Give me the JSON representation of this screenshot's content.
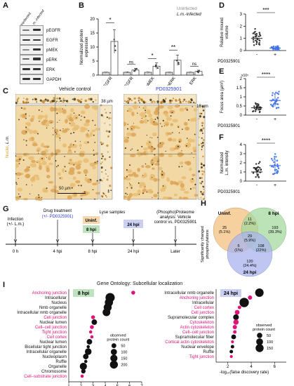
{
  "panels": {
    "A": {
      "label": "A",
      "columns": [
        "Uninfected",
        "L.m.-infected"
      ],
      "rows": [
        "pEGFR",
        "EGFR",
        "pMEK",
        "pERK",
        "ERK",
        "GAPDH"
      ]
    },
    "B": {
      "label": "B",
      "legend": [
        "Uninfected",
        "L.m.-infected"
      ],
      "ylabel": "Normalized protein\nexpression",
      "chart_data": {
        "type": "bar",
        "categories": [
          "pEGFR",
          "EGFR",
          "pMEK",
          "pERK",
          "ERK"
        ],
        "series": [
          {
            "name": "Uninfected",
            "values": [
              1,
              1,
              1,
              1,
              1
            ]
          },
          {
            "name": "L.m.-infected",
            "values": [
              12,
              1.8,
              3.2,
              5.3,
              1.3
            ]
          }
        ],
        "ylim": [
          0,
          20
        ],
        "yticks": [
          0,
          5,
          10,
          15,
          20
        ],
        "significance": [
          "*",
          "ns",
          "*",
          "**",
          "ns"
        ]
      }
    },
    "C": {
      "label": "C",
      "left_title": "Vehicle control",
      "right_title": "PD0325901",
      "left_depth": "38 µm",
      "right_depth": "18 µm",
      "scale": "50 µm",
      "side_label_1": "Nuclei, ",
      "side_label_2": "L.m."
    },
    "D": {
      "label": "D",
      "ylabel": "Relative mound\nvolume",
      "xlabel": "PD0325901",
      "groups": [
        "-",
        "+"
      ],
      "sig": "***",
      "chart_data": {
        "type": "scatter",
        "categories": [
          "-",
          "+"
        ],
        "means": [
          1.0,
          0.2
        ],
        "ylim": [
          0,
          3
        ],
        "yticks": [
          0,
          1,
          2,
          3
        ]
      }
    },
    "E": {
      "label": "E",
      "ylabel": "Focus area (µm²)",
      "xlabel": "PD0325901",
      "exponent": "x10⁵",
      "groups": [
        "-",
        "+"
      ],
      "sig": "****",
      "chart_data": {
        "type": "scatter",
        "categories": [
          "-",
          "+"
        ],
        "means": [
          0.4,
          0.8
        ],
        "ylim": [
          0,
          2.0
        ],
        "yticks": [
          0.0,
          0.5,
          1.0,
          1.5,
          2.0
        ]
      }
    },
    "F": {
      "label": "F",
      "ylabel": "Normalized\nL.m. intensity",
      "xlabel": "PD0325901",
      "groups": [
        "-",
        "+"
      ],
      "sig": "****",
      "chart_data": {
        "type": "scatter",
        "categories": [
          "-",
          "+"
        ],
        "means": [
          1.0,
          1.7
        ],
        "ylim": [
          0,
          4
        ],
        "yticks": [
          0,
          1,
          2,
          3,
          4
        ]
      }
    },
    "G": {
      "label": "G",
      "infection": "Infection\n(+/- L.m.)",
      "drug": "Drug treatment",
      "drug2": "(+/- PD0325901)",
      "lyse": "Lyse samples",
      "uninf": "Uninf.",
      "hpi8": "8 hpi",
      "hpi24": "24 hpi",
      "proteome1": "(Phospho)Proteome",
      "proteome2": "analysis: Vehicle",
      "proteome3": "control vs. PD0325901",
      "times": [
        "0 h",
        "4 hpi",
        "8 hpi",
        "24 hpi",
        "Later"
      ]
    },
    "H": {
      "label": "H",
      "ylabel": "Significantly changed\nphosphorylations",
      "circles": [
        "Uninf.",
        "8 hpi",
        "24 hpi"
      ],
      "regions": [
        {
          "v": "25",
          "p": "(5.1%)"
        },
        {
          "v": "11",
          "p": "(2.2%)"
        },
        {
          "v": "193",
          "p": "(39.3%)"
        },
        {
          "v": "29",
          "p": "(5.9%)"
        },
        {
          "v": "5",
          "p": "(1%)"
        },
        {
          "v": "108",
          "p": "(22%)"
        },
        {
          "v": "120",
          "p": "(24.4%)"
        }
      ]
    },
    "I": {
      "label": "I",
      "title": "Gene Ontology: Subcellular localization",
      "xlabel": "-log₁₀(false discovery rate)",
      "size_legend_title": "observed\nprotein count",
      "left": {
        "tag": "8 hpi",
        "chart_data": {
          "type": "scatter",
          "terms": [
            "Anchoring junction",
            "Intracellular",
            "Nucleus",
            "Nmb organelle",
            "Intracellular nmb organelle",
            "Nuclear lumen",
            "Cell junction",
            "Cell-cell junction",
            "Tight junction",
            "Cell cortex",
            "Nuclear lumen",
            "Bicellular tight junction",
            "Intracellular organelle",
            "Nucleoplasm",
            "Ruffle",
            "Organelle",
            "Chromosome",
            "Cell-substrate junction"
          ],
          "labels": [
            "Anchoring junction",
            "Intracellular",
            "Nucleus",
            "Nmb organelle",
            "Intracellular nmb organelle",
            "Cell junction",
            "Nuclear lumen",
            "Cell–cell junction",
            "Tight junction",
            "Cell cortex",
            "Nuclear lumen",
            "Bicellular tight junction",
            "Intracellular organelle",
            "Nucleoplasm",
            "Ruffle",
            "Organelle",
            "Chromosome",
            "Cell–substrate junction"
          ],
          "pink": [
            true,
            false,
            false,
            false,
            false,
            true,
            false,
            true,
            true,
            true,
            false,
            false,
            false,
            false,
            false,
            false,
            false,
            true
          ],
          "x": [
            6.3,
            4.4,
            4.3,
            4.2,
            4.1,
            3.0,
            3.1,
            2.9,
            2.8,
            2.9,
            2.7,
            2.6,
            2.6,
            2.4,
            2.4,
            2.2,
            2.2,
            2.1
          ],
          "counts": [
            20,
            230,
            170,
            160,
            150,
            20,
            60,
            20,
            10,
            10,
            60,
            10,
            100,
            60,
            10,
            120,
            30,
            10
          ],
          "xlim": [
            1,
            7
          ],
          "xticks": [
            1,
            2,
            3,
            4,
            5,
            6,
            7
          ],
          "size_legend": [
            50,
            100,
            150,
            200
          ]
        }
      },
      "right": {
        "tag": "24 hpi",
        "chart_data": {
          "type": "scatter",
          "labels": [
            "Intracellular nmb organelle",
            "Anchoring junction",
            "Intracellular",
            "Cell cortex",
            "Cell junction",
            "Supramolecular complex",
            "Cytoskeleton",
            "Actin cytoskeleton",
            "Cell–cell junction",
            "Supramolecular fiber",
            "Cortical actin cytoskeleton",
            "Nuclear envelope",
            "Ruffle",
            "Tight junction"
          ],
          "pink": [
            false,
            true,
            false,
            true,
            true,
            false,
            true,
            true,
            true,
            false,
            true,
            false,
            false,
            true
          ],
          "x": [
            4.7,
            3.9,
            3.4,
            3.0,
            2.8,
            2.7,
            2.7,
            2.6,
            2.6,
            2.5,
            2.4,
            2.4,
            2.3,
            2.3
          ],
          "counts": [
            140,
            20,
            180,
            10,
            30,
            50,
            40,
            20,
            10,
            30,
            5,
            10,
            10,
            5
          ],
          "xlim": [
            1,
            7
          ],
          "xticks": [
            2,
            4,
            6
          ],
          "size_legend": [
            50,
            100,
            150
          ]
        }
      }
    }
  }
}
